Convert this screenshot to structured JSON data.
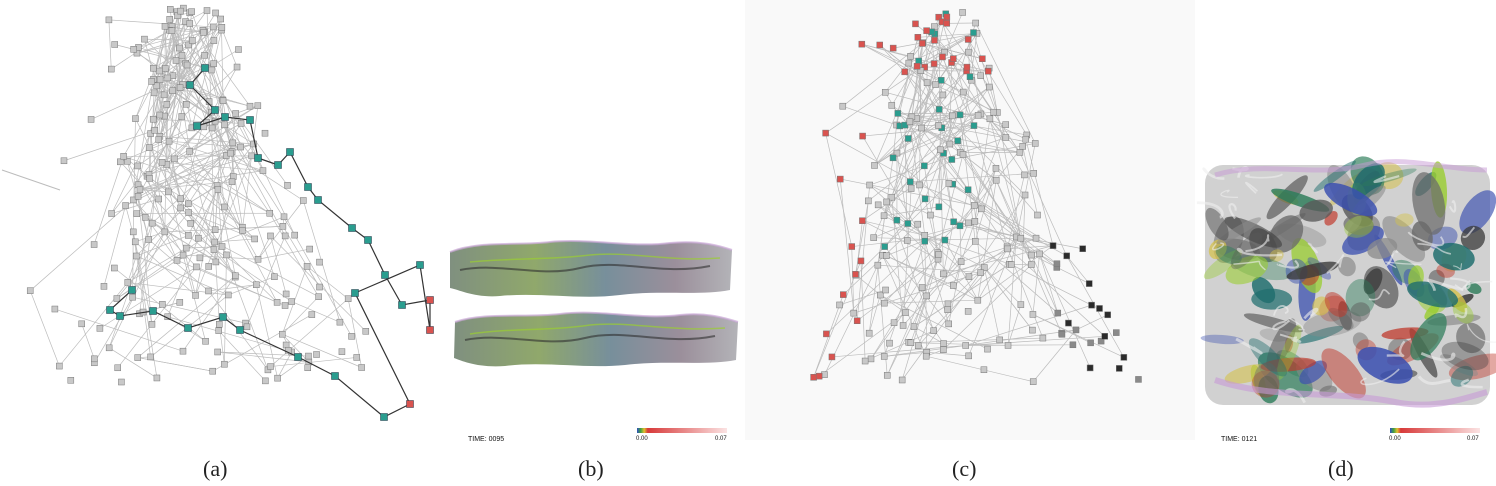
{
  "captions": [
    "(a)",
    "(b)",
    "(c)",
    "(d)"
  ],
  "panel_b": {
    "time_label": "TIME: 0095",
    "colorbar_min": "0.00",
    "colorbar_max": "0.07"
  },
  "panel_d": {
    "time_label": "TIME: 0121",
    "colorbar_min": "0.00",
    "colorbar_max": "0.07"
  },
  "colors": {
    "node_gray": "#c8c8c8",
    "node_teal": "#2a9d8f",
    "node_red": "#d9534f",
    "node_dark": "#2b2b2b",
    "edge": "#bcbcbc"
  }
}
